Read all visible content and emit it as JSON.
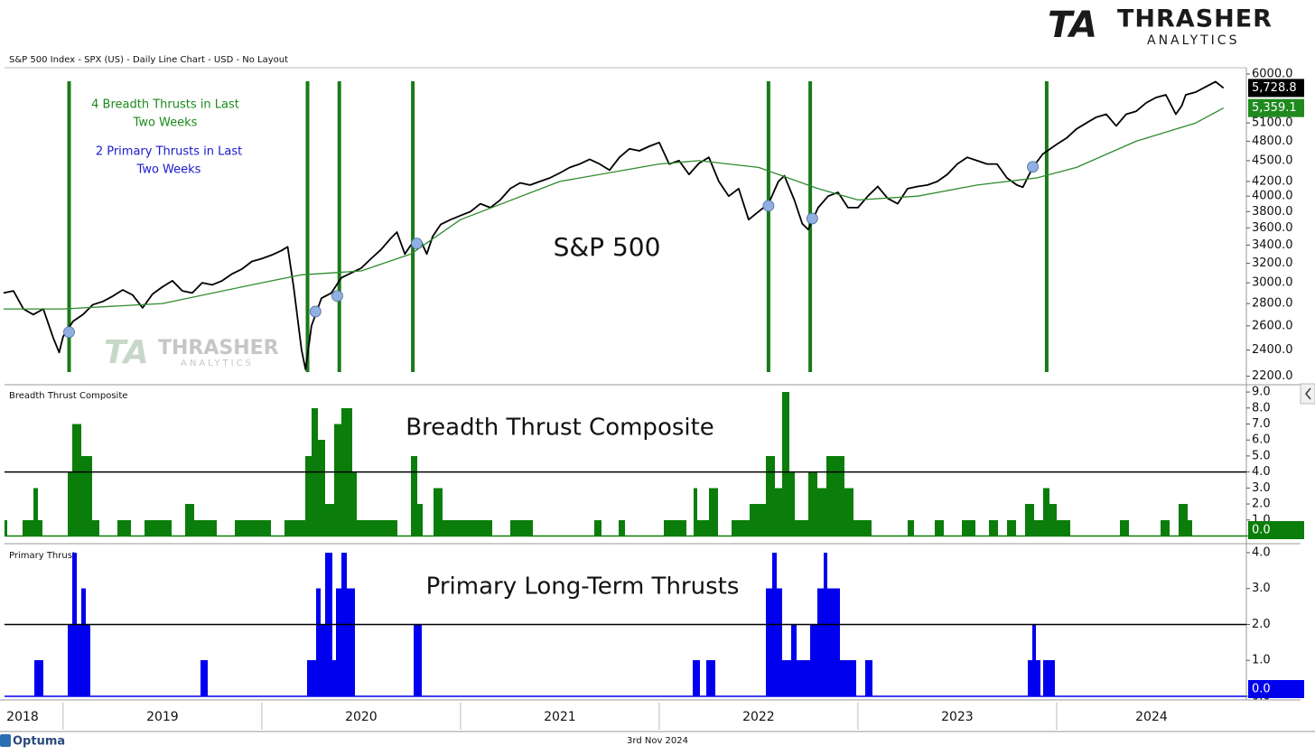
{
  "header": "S&P 500 Index - SPX (US) - Daily Line Chart - USD - No Layout",
  "logo": {
    "mark": "TA",
    "name": "THRASHER",
    "sub": "ANALYTICS"
  },
  "footer": {
    "brand": "Optuma",
    "date": "3rd Nov 2024"
  },
  "chart_data": [
    {
      "type": "line",
      "title": "S&P 500",
      "log_scale": true,
      "xlim": [
        2018.705,
        2024.955
      ],
      "ylim": [
        2145,
        6090
      ],
      "yticks": [
        {
          "value": 6000,
          "label": "6000.0"
        },
        {
          "value": 5100,
          "label": "5100.0"
        },
        {
          "value": 4800,
          "label": "4800.0"
        },
        {
          "value": 4500,
          "label": "4500.0"
        },
        {
          "value": 4200,
          "label": "4200.0"
        },
        {
          "value": 4000,
          "label": "4000.0"
        },
        {
          "value": 3800,
          "label": "3800.0"
        },
        {
          "value": 3600,
          "label": "3600.0"
        },
        {
          "value": 3400,
          "label": "3400.0"
        },
        {
          "value": 3200,
          "label": "3200.0"
        },
        {
          "value": 3000,
          "label": "3000.0"
        },
        {
          "value": 2800,
          "label": "2800.0"
        },
        {
          "value": 2600,
          "label": "2600.0"
        },
        {
          "value": 2400,
          "label": "2400.0"
        },
        {
          "value": 2200,
          "label": "2200.0"
        }
      ],
      "x": [
        2018.7,
        2018.75,
        2018.8,
        2018.85,
        2018.9,
        2018.95,
        2018.98,
        2019.0,
        2019.05,
        2019.1,
        2019.15,
        2019.2,
        2019.25,
        2019.3,
        2019.35,
        2019.4,
        2019.45,
        2019.5,
        2019.55,
        2019.6,
        2019.65,
        2019.7,
        2019.75,
        2019.8,
        2019.85,
        2019.9,
        2019.95,
        2020.0,
        2020.05,
        2020.1,
        2020.13,
        2020.16,
        2020.2,
        2020.22,
        2020.25,
        2020.3,
        2020.35,
        2020.4,
        2020.45,
        2020.5,
        2020.55,
        2020.6,
        2020.65,
        2020.68,
        2020.72,
        2020.75,
        2020.8,
        2020.83,
        2020.86,
        2020.9,
        2020.95,
        2021.0,
        2021.05,
        2021.1,
        2021.15,
        2021.2,
        2021.25,
        2021.3,
        2021.35,
        2021.4,
        2021.45,
        2021.5,
        2021.55,
        2021.6,
        2021.65,
        2021.7,
        2021.75,
        2021.8,
        2021.85,
        2021.9,
        2021.95,
        2022.0,
        2022.05,
        2022.1,
        2022.15,
        2022.2,
        2022.25,
        2022.3,
        2022.35,
        2022.4,
        2022.45,
        2022.5,
        2022.55,
        2022.6,
        2022.63,
        2022.68,
        2022.72,
        2022.75,
        2022.8,
        2022.85,
        2022.9,
        2022.95,
        2023.0,
        2023.05,
        2023.1,
        2023.15,
        2023.2,
        2023.25,
        2023.3,
        2023.35,
        2023.4,
        2023.45,
        2023.5,
        2023.55,
        2023.6,
        2023.65,
        2023.7,
        2023.75,
        2023.8,
        2023.83,
        2023.88,
        2023.93,
        2024.0,
        2024.05,
        2024.1,
        2024.15,
        2024.2,
        2024.25,
        2024.3,
        2024.35,
        2024.4,
        2024.45,
        2024.5,
        2024.55,
        2024.6,
        2024.63,
        2024.65,
        2024.7,
        2024.75,
        2024.8,
        2024.84
      ],
      "series": [
        {
          "color": "#000000",
          "last": {
            "value": 5728.8,
            "label": "5,728.8"
          },
          "values": [
            2900,
            2920,
            2750,
            2700,
            2750,
            2500,
            2380,
            2510,
            2640,
            2700,
            2790,
            2820,
            2870,
            2930,
            2880,
            2760,
            2890,
            2960,
            3020,
            2920,
            2900,
            3000,
            2980,
            3020,
            3090,
            3140,
            3220,
            3250,
            3290,
            3340,
            3380,
            2960,
            2400,
            2250,
            2600,
            2850,
            2900,
            3050,
            3100,
            3150,
            3250,
            3350,
            3480,
            3550,
            3300,
            3400,
            3450,
            3300,
            3500,
            3640,
            3700,
            3750,
            3800,
            3900,
            3850,
            3950,
            4100,
            4180,
            4150,
            4200,
            4250,
            4320,
            4400,
            4450,
            4520,
            4450,
            4360,
            4550,
            4680,
            4650,
            4720,
            4780,
            4450,
            4500,
            4300,
            4460,
            4550,
            4200,
            4000,
            4100,
            3700,
            3800,
            3900,
            4200,
            4280,
            3950,
            3650,
            3580,
            3850,
            4000,
            4050,
            3850,
            3850,
            4000,
            4130,
            3970,
            3900,
            4100,
            4130,
            4150,
            4200,
            4300,
            4450,
            4550,
            4500,
            4450,
            4450,
            4250,
            4150,
            4120,
            4400,
            4600,
            4750,
            4850,
            5000,
            5100,
            5200,
            5250,
            5050,
            5250,
            5300,
            5450,
            5550,
            5600,
            5250,
            5400,
            5600,
            5650,
            5750,
            5850,
            5728.8
          ]
        },
        {
          "color": "#2e8b2e",
          "last": {
            "value": 5359.1,
            "label": "5,359.1"
          },
          "x": [
            2018.7,
            2019.0,
            2019.5,
            2020.0,
            2020.2,
            2020.5,
            2020.75,
            2021.0,
            2021.5,
            2022.0,
            2022.2,
            2022.5,
            2022.8,
            2023.0,
            2023.3,
            2023.6,
            2023.9,
            2024.1,
            2024.4,
            2024.7,
            2024.84
          ],
          "values": [
            2750,
            2750,
            2800,
            3000,
            3080,
            3120,
            3300,
            3700,
            4200,
            4450,
            4500,
            4400,
            4100,
            3950,
            4000,
            4150,
            4250,
            4400,
            4800,
            5100,
            5359.1
          ]
        }
      ],
      "thrust_lines": [
        2019.03,
        2020.23,
        2020.39,
        2020.76,
        2022.55,
        2022.76,
        2023.95
      ],
      "thrust_color": "#1a7a1a",
      "signals": {
        "color": "#8fb0e0",
        "x": [
          2019.03,
          2020.27,
          2020.38,
          2020.78,
          2022.55,
          2022.77,
          2023.88
        ],
        "values": [
          2547,
          2727,
          2871,
          3418,
          3874,
          3714,
          4409
        ]
      },
      "annotations": [
        {
          "lines": [
            "4 Breadth Thrusts in Last",
            "Two Weeks"
          ],
          "color": "#1a8a1a"
        },
        {
          "lines": [
            "2 Primary Thrusts in Last",
            "Two Weeks"
          ],
          "color": "#1a1acc"
        }
      ]
    },
    {
      "type": "histogram",
      "panel_label": "Breadth Thrust Composite",
      "title": "Breadth Thrust Composite",
      "color": "#0a7d0a",
      "xlim": [
        2018.705,
        2024.955
      ],
      "ylim": [
        -0.2,
        9.4
      ],
      "yticks": [
        {
          "value": 9,
          "label": "9.0"
        },
        {
          "value": 8,
          "label": "8.0"
        },
        {
          "value": 7,
          "label": "7.0"
        },
        {
          "value": 6,
          "label": "6.0"
        },
        {
          "value": 5,
          "label": "5.0"
        },
        {
          "value": 4,
          "label": "4.0"
        },
        {
          "value": 3,
          "label": "3.0"
        },
        {
          "value": 2,
          "label": "2.0"
        },
        {
          "value": 1,
          "label": "1.0"
        },
        {
          "value": 0,
          "label": "0.0"
        }
      ],
      "threshold": 4,
      "last": {
        "value": 0,
        "label": "0.0"
      },
      "bins": [
        2018.705,
        2018.718,
        2018.795,
        2018.85,
        2018.873,
        2018.895,
        2019.023,
        2019.045,
        2019.091,
        2019.145,
        2019.182,
        2019.273,
        2019.341,
        2019.409,
        2019.545,
        2019.614,
        2019.659,
        2019.773,
        2019.864,
        2020.045,
        2020.114,
        2020.218,
        2020.25,
        2020.282,
        2020.318,
        2020.364,
        2020.4,
        2020.455,
        2020.477,
        2020.523,
        2020.682,
        2020.75,
        2020.782,
        2020.809,
        2020.864,
        2020.909,
        2021.159,
        2021.25,
        2021.364,
        2021.673,
        2021.709,
        2021.795,
        2021.827,
        2022.023,
        2022.136,
        2022.173,
        2022.191,
        2022.25,
        2022.295,
        2022.364,
        2022.455,
        2022.536,
        2022.582,
        2022.618,
        2022.655,
        2022.682,
        2022.75,
        2022.795,
        2022.841,
        2022.932,
        2022.977,
        2023.068,
        2023.25,
        2023.282,
        2023.386,
        2023.432,
        2023.523,
        2023.591,
        2023.659,
        2023.705,
        2023.75,
        2023.795,
        2023.841,
        2023.886,
        2023.932,
        2023.964,
        2024.0,
        2024.068,
        2024.318,
        2024.364,
        2024.523,
        2024.568,
        2024.614,
        2024.659,
        2024.682,
        2024.841
      ],
      "values": [
        1,
        0,
        1,
        3,
        1,
        0,
        4,
        7,
        5,
        1,
        0,
        1,
        0,
        1,
        0,
        2,
        1,
        0,
        1,
        0,
        1,
        5,
        8,
        6,
        2,
        7,
        8,
        4,
        1,
        1,
        0,
        5,
        2,
        0,
        3,
        1,
        0,
        1,
        0,
        1,
        0,
        1,
        0,
        1,
        0,
        3,
        1,
        3,
        0,
        1,
        2,
        5,
        3,
        9,
        4,
        1,
        4,
        3,
        5,
        3,
        1,
        0,
        1,
        0,
        1,
        0,
        1,
        0,
        1,
        0,
        1,
        0,
        2,
        1,
        3,
        2,
        1,
        0,
        1,
        0,
        1,
        0,
        2,
        1,
        0
      ]
    },
    {
      "type": "histogram",
      "panel_label": "Primary Thrust",
      "title": "Primary Long-Term Thrusts",
      "color": "#0000ee",
      "xlim": [
        2018.705,
        2024.955
      ],
      "ylim": [
        -0.05,
        4.2
      ],
      "yticks": [
        {
          "value": 4,
          "label": "4.0"
        },
        {
          "value": 3,
          "label": "3.0"
        },
        {
          "value": 2,
          "label": "2.0"
        },
        {
          "value": 1,
          "label": "1.0"
        },
        {
          "value": 0,
          "label": "0.0"
        }
      ],
      "threshold": 2,
      "last": {
        "value": 0,
        "label": "0.0"
      },
      "xticks": [
        {
          "value": 2018,
          "label": "2018"
        },
        {
          "value": 2019,
          "label": "2019"
        },
        {
          "value": 2020,
          "label": "2020"
        },
        {
          "value": 2021,
          "label": "2021"
        },
        {
          "value": 2022,
          "label": "2022"
        },
        {
          "value": 2023,
          "label": "2023"
        },
        {
          "value": 2024,
          "label": "2024"
        }
      ],
      "bins": [
        2018.705,
        2018.855,
        2018.9,
        2019.023,
        2019.045,
        2019.068,
        2019.091,
        2019.114,
        2019.136,
        2019.691,
        2019.727,
        2020.227,
        2020.273,
        2020.295,
        2020.318,
        2020.355,
        2020.373,
        2020.4,
        2020.427,
        2020.468,
        2020.764,
        2020.805,
        2022.168,
        2022.205,
        2022.236,
        2022.282,
        2022.536,
        2022.568,
        2022.591,
        2022.618,
        2022.664,
        2022.691,
        2022.759,
        2022.795,
        2022.827,
        2022.845,
        2022.909,
        2022.991,
        2023.036,
        2023.073,
        2023.855,
        2023.877,
        2023.895,
        2023.918,
        2023.932,
        2023.991,
        2024.841
      ],
      "values": [
        0,
        1,
        0,
        2,
        4,
        2,
        3,
        2,
        0,
        1,
        0,
        1,
        3,
        2,
        4,
        1,
        3,
        4,
        3,
        0,
        2,
        0,
        1,
        0,
        1,
        0,
        3,
        4,
        3,
        1,
        2,
        1,
        2,
        3,
        4,
        3,
        1,
        0,
        1,
        0,
        1,
        2,
        1,
        0,
        1,
        0
      ]
    }
  ]
}
